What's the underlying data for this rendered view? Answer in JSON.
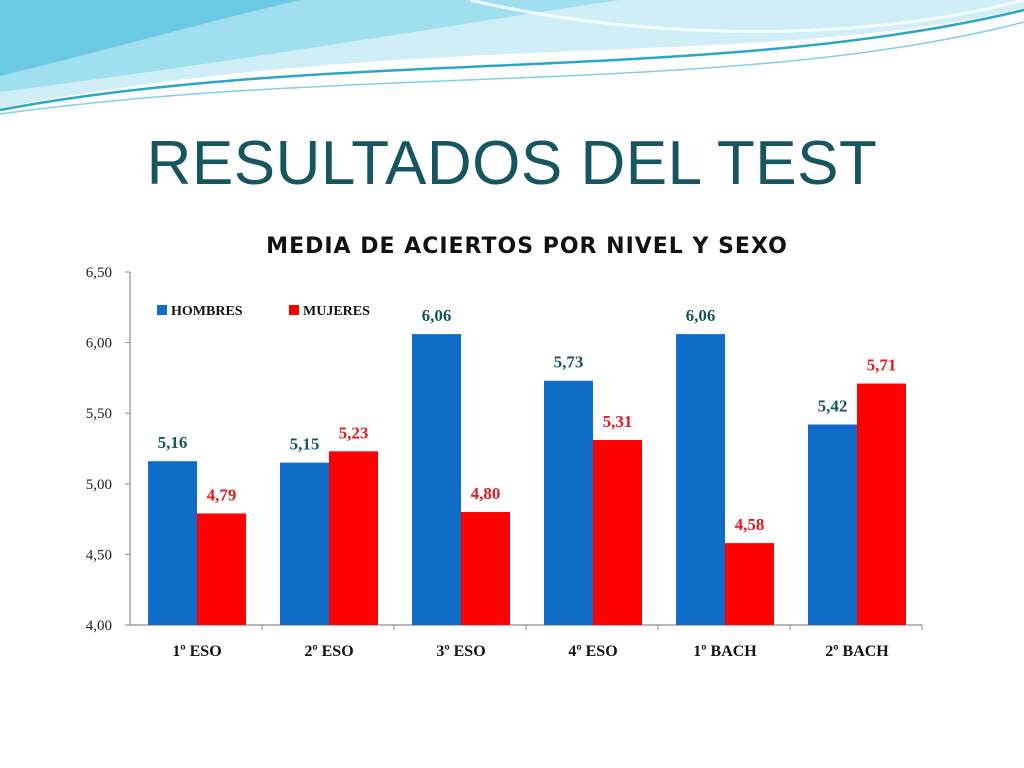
{
  "slide": {
    "title": "RESULTADOS DEL TEST"
  },
  "colors": {
    "hombres": "#0f6cc8",
    "mujeres": "#ff0000",
    "title_text": "#17555f",
    "wave_dark": "#2aa6c9",
    "wave_light": "#aee4f2"
  },
  "chart_data": {
    "type": "bar",
    "title": "MEDIA DE ACIERTOS POR NIVEL Y SEXO",
    "xlabel": "",
    "ylabel": "",
    "categories": [
      "1º ESO",
      "2º ESO",
      "3º ESO",
      "4º ESO",
      "1º BACH",
      "2º BACH"
    ],
    "series": [
      {
        "name": "HOMBRES",
        "color": "#0f6cc8",
        "label_color": "#17555f",
        "values": [
          5.16,
          5.15,
          6.06,
          5.73,
          6.06,
          5.42
        ],
        "labels": [
          "5,16",
          "5,15",
          "6,06",
          "5,73",
          "6,06",
          "5,42"
        ]
      },
      {
        "name": "MUJERES",
        "color": "#ff0000",
        "label_color": "#e3191e",
        "values": [
          4.79,
          5.23,
          4.8,
          5.31,
          4.58,
          5.71
        ],
        "labels": [
          "4,79",
          "5,23",
          "4,80",
          "5,31",
          "4,58",
          "5,71"
        ]
      }
    ],
    "ylim": [
      4.0,
      6.5
    ],
    "yticks": [
      4.0,
      4.5,
      5.0,
      5.5,
      6.0,
      6.5
    ],
    "ytick_labels": [
      "4,00",
      "4,50",
      "5,00",
      "5,50",
      "6,00",
      "6,50"
    ],
    "grid": false,
    "legend": "top-left"
  }
}
